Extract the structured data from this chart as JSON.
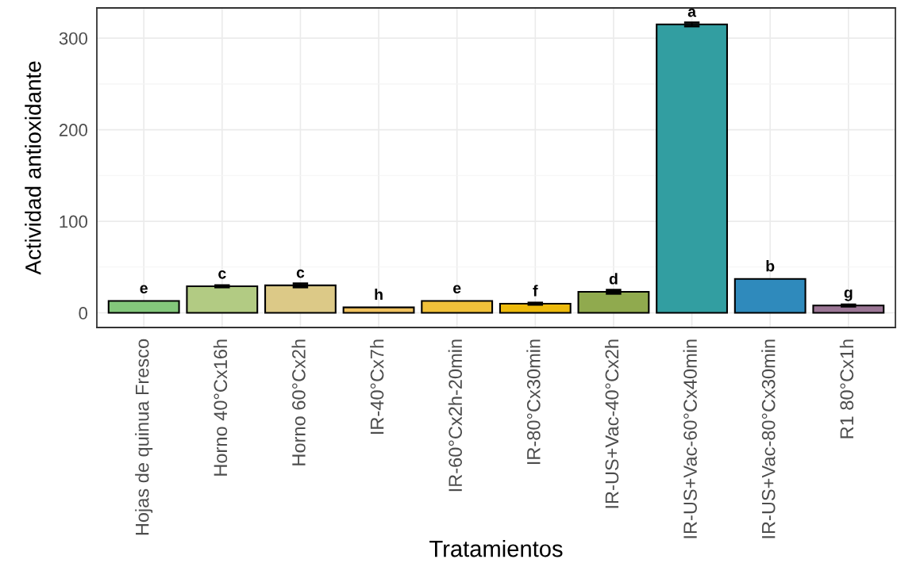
{
  "chart_data": {
    "type": "bar",
    "xlabel": "Tratamientos",
    "ylabel": "Actividad antioxidante",
    "categories": [
      "Hojas de quinua Fresco",
      "Horno 40°Cx16h",
      "Horno 60°Cx2h",
      "IR-40°Cx7h",
      "IR-60°Cx2h-20min",
      "IR-80°Cx30min",
      "IR-US+Vac-40°Cx2h",
      "IR-US+Vac-60°Cx40min",
      "IR-US+Vac-80°Cx30min",
      "R1 80°Cx1h"
    ],
    "values": [
      13,
      29,
      30,
      6,
      13,
      10,
      23,
      315,
      37,
      8
    ],
    "colors": [
      "#83c77b",
      "#b2cb83",
      "#dcc987",
      "#efc15f",
      "#f0c03a",
      "#edba0c",
      "#90aa4e",
      "#329ea1",
      "#2f8abc",
      "#9b7695"
    ],
    "errors": [
      null,
      1,
      2,
      null,
      null,
      1,
      2,
      2,
      null,
      1
    ],
    "ylim": [
      -16,
      333
    ],
    "yticks": [
      0,
      {
        "value": 50,
        "label": null
      },
      100,
      {
        "value": 150,
        "label": null
      },
      200,
      {
        "value": 250,
        "label": null
      },
      300
    ],
    "grid": true,
    "annotations": [
      {
        "text": "e",
        "x": "Hojas de quinua Fresco",
        "y": 13
      },
      {
        "text": "c",
        "x": "Horno 40°Cx16h",
        "y": 29
      },
      {
        "text": "c",
        "x": "Horno 60°Cx2h",
        "y": 30
      },
      {
        "text": "h",
        "x": "IR-40°Cx7h",
        "y": 6
      },
      {
        "text": "e",
        "x": "IR-60°Cx2h-20min",
        "y": 13
      },
      {
        "text": "f",
        "x": "IR-80°Cx30min",
        "y": 10
      },
      {
        "text": "d",
        "x": "IR-US+Vac-40°Cx2h",
        "y": 23
      },
      {
        "text": "a",
        "x": "IR-US+Vac-60°Cx40min",
        "y": 315
      },
      {
        "text": "b",
        "x": "IR-US+Vac-80°Cx30min",
        "y": 37
      },
      {
        "text": "g",
        "x": "R1 80°Cx1h",
        "y": 8
      }
    ]
  }
}
